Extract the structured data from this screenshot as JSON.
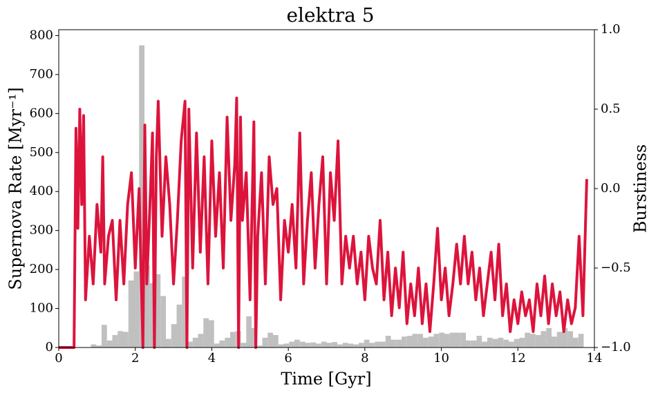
{
  "chart_data": {
    "type": "histogram",
    "title": "elektra 5",
    "xlabel": "Time [Gyr]",
    "ylabel": "Supernova Rate [Myr⁻¹]",
    "y2label": "Burstiness",
    "color": "#c0c0c0",
    "bins": [
      0,
      0.14,
      0.28,
      0.42,
      0.56,
      0.7,
      0.84,
      0.98,
      1.12,
      1.26,
      1.4,
      1.54,
      1.68,
      1.82,
      1.96,
      2.1,
      2.24,
      2.38,
      2.52,
      2.66,
      2.8,
      2.94,
      3.08,
      3.22,
      3.36,
      3.5,
      3.64,
      3.78,
      3.92,
      4.06,
      4.2,
      4.34,
      4.48,
      4.62,
      4.76,
      4.9,
      5.04,
      5.18,
      5.32,
      5.46,
      5.6,
      5.74,
      5.88,
      6.02,
      6.16,
      6.3,
      6.44,
      6.58,
      6.72,
      6.86,
      7,
      7.14,
      7.28,
      7.42,
      7.56,
      7.7,
      7.84,
      7.98,
      8.12,
      8.26,
      8.4,
      8.54,
      8.68,
      8.82,
      8.96,
      9.1,
      9.24,
      9.38,
      9.52,
      9.66,
      9.8,
      9.94,
      10.08,
      10.22,
      10.36,
      10.5,
      10.64,
      10.78,
      10.92,
      11.06,
      11.2,
      11.34,
      11.48,
      11.62,
      11.76,
      11.9,
      12.04,
      12.18,
      12.32,
      12.46,
      12.6,
      12.74,
      12.88,
      13.02,
      13.16,
      13.3,
      13.44,
      13.58,
      13.72,
      13.86,
      14
    ],
    "values": [
      0,
      0,
      0,
      0,
      0,
      0,
      8,
      5,
      58,
      18,
      32,
      42,
      40,
      172,
      195,
      775,
      210,
      165,
      188,
      132,
      22,
      60,
      110,
      182,
      15,
      25,
      35,
      75,
      70,
      10,
      18,
      25,
      40,
      42,
      12,
      80,
      50,
      5,
      25,
      38,
      32,
      8,
      10,
      15,
      20,
      15,
      12,
      13,
      10,
      15,
      12,
      14,
      8,
      12,
      10,
      8,
      12,
      20,
      12,
      15,
      15,
      30,
      20,
      20,
      28,
      30,
      35,
      35,
      25,
      28,
      35,
      38,
      35,
      38,
      38,
      38,
      18,
      18,
      30,
      15,
      25,
      22,
      25,
      20,
      15,
      22,
      25,
      38,
      35,
      32,
      42,
      50,
      28,
      40,
      50,
      42,
      25,
      35,
      0,
      0
    ],
    "line": {
      "type": "line",
      "color": "#dc143c",
      "axis": "y2",
      "x": [
        0,
        0.1,
        0.2,
        0.3,
        0.4,
        0.45,
        0.5,
        0.55,
        0.6,
        0.65,
        0.7,
        0.8,
        0.9,
        1.0,
        1.1,
        1.15,
        1.2,
        1.3,
        1.4,
        1.5,
        1.6,
        1.7,
        1.8,
        1.9,
        2.0,
        2.1,
        2.2,
        2.25,
        2.3,
        2.4,
        2.45,
        2.5,
        2.55,
        2.6,
        2.7,
        2.8,
        2.9,
        3.0,
        3.1,
        3.2,
        3.3,
        3.35,
        3.4,
        3.5,
        3.6,
        3.7,
        3.8,
        3.9,
        4.0,
        4.1,
        4.2,
        4.3,
        4.4,
        4.5,
        4.6,
        4.65,
        4.7,
        4.75,
        4.8,
        4.9,
        5.0,
        5.1,
        5.15,
        5.2,
        5.3,
        5.4,
        5.5,
        5.6,
        5.7,
        5.8,
        5.9,
        6.0,
        6.1,
        6.2,
        6.3,
        6.4,
        6.5,
        6.6,
        6.7,
        6.8,
        6.9,
        7.0,
        7.1,
        7.2,
        7.3,
        7.4,
        7.5,
        7.6,
        7.7,
        7.8,
        7.9,
        8.0,
        8.1,
        8.2,
        8.3,
        8.4,
        8.5,
        8.6,
        8.7,
        8.8,
        8.9,
        9.0,
        9.1,
        9.2,
        9.3,
        9.4,
        9.5,
        9.6,
        9.7,
        9.8,
        9.9,
        10.0,
        10.1,
        10.2,
        10.3,
        10.4,
        10.5,
        10.6,
        10.7,
        10.8,
        10.9,
        11.0,
        11.1,
        11.2,
        11.3,
        11.4,
        11.5,
        11.6,
        11.7,
        11.8,
        11.9,
        12.0,
        12.1,
        12.2,
        12.3,
        12.4,
        12.5,
        12.6,
        12.7,
        12.8,
        12.9,
        13.0,
        13.1,
        13.2,
        13.3,
        13.4,
        13.5,
        13.6,
        13.7,
        13.8
      ],
      "values": [
        -1,
        -1,
        -1,
        -1,
        -1,
        0.38,
        -0.25,
        0.5,
        -0.1,
        0.46,
        -0.7,
        -0.3,
        -0.6,
        -0.1,
        -0.4,
        0.2,
        -0.6,
        -0.3,
        -0.2,
        -0.7,
        -0.2,
        -0.6,
        -0.1,
        0.1,
        -0.5,
        0.0,
        -1.0,
        0.4,
        -0.6,
        0.0,
        0.35,
        -1.0,
        0.2,
        0.55,
        -0.3,
        0.2,
        -0.1,
        -0.6,
        -0.2,
        0.3,
        0.55,
        -1.0,
        0.5,
        -0.5,
        0.35,
        -0.4,
        0.2,
        -0.6,
        0.3,
        -0.3,
        0.1,
        -0.5,
        0.45,
        -0.2,
        0.15,
        0.57,
        -1.0,
        0.45,
        -0.2,
        0.1,
        -0.7,
        0.42,
        -1.0,
        -0.3,
        0.1,
        -0.6,
        0.2,
        -0.1,
        0.0,
        -0.7,
        -0.2,
        -0.4,
        -0.1,
        -0.5,
        0.35,
        -0.6,
        -0.2,
        0.1,
        -0.5,
        -0.1,
        0.2,
        -0.6,
        0.1,
        -0.2,
        0.3,
        -0.6,
        -0.3,
        -0.5,
        -0.3,
        -0.6,
        -0.4,
        -0.7,
        -0.3,
        -0.5,
        -0.6,
        -0.2,
        -0.7,
        -0.4,
        -0.8,
        -0.5,
        -0.75,
        -0.4,
        -0.85,
        -0.6,
        -0.8,
        -0.5,
        -0.85,
        -0.6,
        -0.9,
        -0.6,
        -0.25,
        -0.7,
        -0.5,
        -0.8,
        -0.6,
        -0.35,
        -0.6,
        -0.3,
        -0.6,
        -0.4,
        -0.7,
        -0.5,
        -0.8,
        -0.6,
        -0.4,
        -0.7,
        -0.35,
        -0.8,
        -0.6,
        -0.9,
        -0.7,
        -0.85,
        -0.65,
        -0.8,
        -0.7,
        -0.9,
        -0.6,
        -0.8,
        -0.55,
        -0.85,
        -0.6,
        -0.8,
        -0.65,
        -0.9,
        -0.7,
        -0.85,
        -0.75,
        -0.3,
        -0.8,
        0.06
      ]
    },
    "xlim": [
      0,
      14
    ],
    "xticks": [
      0,
      2,
      4,
      6,
      8,
      10,
      12,
      14
    ],
    "ylim": [
      0,
      815
    ],
    "yticks": [
      0,
      100,
      200,
      300,
      400,
      500,
      600,
      700,
      800
    ],
    "y2lim": [
      -1,
      1
    ],
    "y2ticks": [
      {
        "value": -1,
        "label": "−1.0"
      },
      {
        "value": -0.5,
        "label": "−0.5"
      },
      {
        "value": 0,
        "label": "0.0"
      },
      0.5,
      {
        "value": 1,
        "label": "1.0"
      }
    ]
  }
}
